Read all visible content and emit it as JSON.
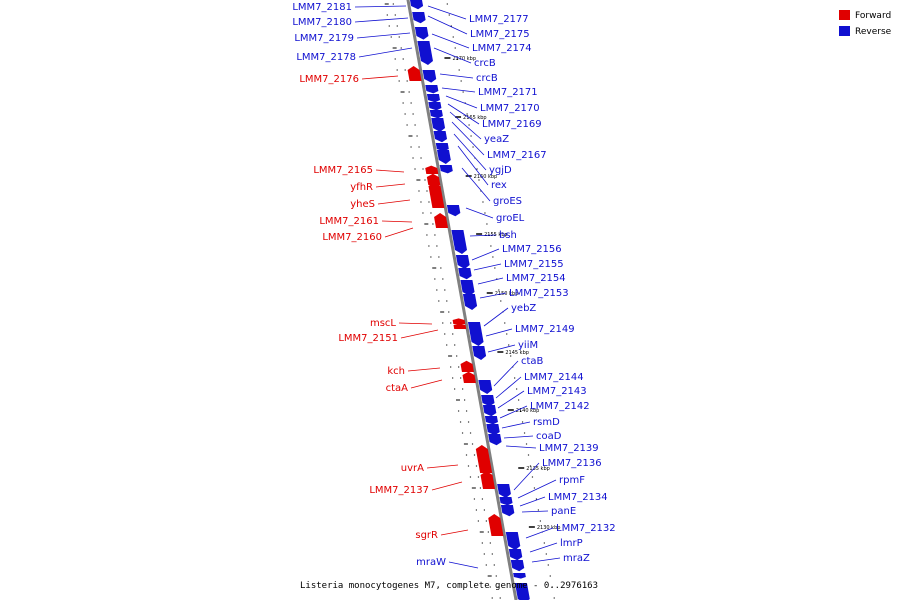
{
  "title": "Listeria monocytogenes M7, complete genome - 0..2976163",
  "colors": {
    "forward": "#e00000",
    "reverse": "#1010d0",
    "backbone": "#808080"
  },
  "legend": [
    {
      "label": "Forward",
      "color": "#e00000"
    },
    {
      "label": "Reverse",
      "color": "#1010d0"
    }
  ],
  "ticks": [
    {
      "label": "2170 kbp"
    },
    {
      "label": "2165 kbp"
    },
    {
      "label": "2160 kbp"
    },
    {
      "label": "2155 kbp"
    },
    {
      "label": "2150 kbp"
    },
    {
      "label": "2145 kbp"
    },
    {
      "label": "2140 kbp"
    },
    {
      "label": "2135 kbp"
    },
    {
      "label": "2130 kbp"
    }
  ],
  "genes_forward": [
    {
      "label": "LMM7_2176"
    },
    {
      "label": "LMM7_2165"
    },
    {
      "label": "yfhR"
    },
    {
      "label": "yheS"
    },
    {
      "label": "LMM7_2161"
    },
    {
      "label": "LMM7_2160"
    },
    {
      "label": "mscL"
    },
    {
      "label": "LMM7_2151"
    },
    {
      "label": "kch"
    },
    {
      "label": "ctaA"
    },
    {
      "label": "uvrA"
    },
    {
      "label": "LMM7_2137"
    },
    {
      "label": "sgrR"
    }
  ],
  "genes_reverse_left": [
    {
      "label": "LMM7_2181"
    },
    {
      "label": "LMM7_2180"
    },
    {
      "label": "LMM7_2179"
    },
    {
      "label": "LMM7_2178"
    },
    {
      "label": "mraW"
    }
  ],
  "genes_reverse_right": [
    {
      "label": "LMM7_2177"
    },
    {
      "label": "LMM7_2175"
    },
    {
      "label": "LMM7_2174"
    },
    {
      "label": "crcB"
    },
    {
      "label": "crcB"
    },
    {
      "label": "LMM7_2171"
    },
    {
      "label": "LMM7_2170"
    },
    {
      "label": "LMM7_2169"
    },
    {
      "label": "yeaZ"
    },
    {
      "label": "LMM7_2167"
    },
    {
      "label": "ygjD"
    },
    {
      "label": "rex"
    },
    {
      "label": "groES"
    },
    {
      "label": "groEL"
    },
    {
      "label": "bsh"
    },
    {
      "label": "LMM7_2156"
    },
    {
      "label": "LMM7_2155"
    },
    {
      "label": "LMM7_2154"
    },
    {
      "label": "LMM7_2153"
    },
    {
      "label": "yebZ"
    },
    {
      "label": "LMM7_2149"
    },
    {
      "label": "yiiM"
    },
    {
      "label": "ctaB"
    },
    {
      "label": "LMM7_2144"
    },
    {
      "label": "LMM7_2143"
    },
    {
      "label": "LMM7_2142"
    },
    {
      "label": "rsmD"
    },
    {
      "label": "coaD"
    },
    {
      "label": "LMM7_2139"
    },
    {
      "label": "LMM7_2136"
    },
    {
      "label": "rpmF"
    },
    {
      "label": "LMM7_2134"
    },
    {
      "label": "panE"
    },
    {
      "label": "LMM7_2132"
    },
    {
      "label": "lmrP"
    },
    {
      "label": "mraZ"
    }
  ]
}
